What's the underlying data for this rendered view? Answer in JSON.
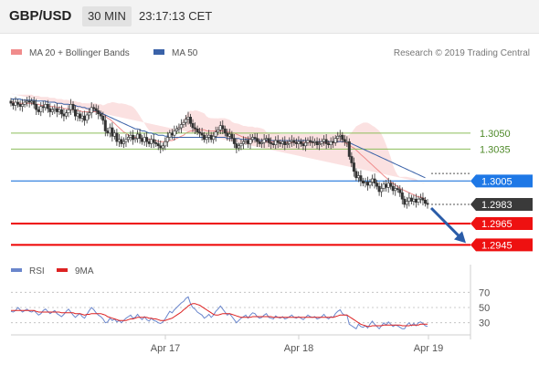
{
  "header": {
    "symbol": "GBP/USD",
    "timeframe": "30 MIN",
    "time": "23:17:13 CET"
  },
  "legend": {
    "items": [
      {
        "label": "MA 20 + Bollinger Bands",
        "color": "#f08c8c"
      },
      {
        "label": "MA 50",
        "color": "#3a62a8"
      }
    ],
    "credit": "Research © 2019 Trading Central"
  },
  "levels": [
    {
      "price": 1.305,
      "label": "1.3050",
      "style": "resistance-minor",
      "color": "#8cbd5a"
    },
    {
      "price": 1.3035,
      "label": "1.3035",
      "style": "resistance-minor",
      "color": "#8cbd5a"
    },
    {
      "price": 1.3005,
      "label": "1.3005",
      "style": "pivot",
      "color": "#2277dd"
    },
    {
      "price": 1.2983,
      "label": "1.2983",
      "style": "last",
      "color": "#333333"
    },
    {
      "price": 1.2965,
      "label": "1.2965",
      "style": "support",
      "color": "#ee0000"
    },
    {
      "price": 1.2945,
      "label": "1.2945",
      "style": "support",
      "color": "#ee0000"
    }
  ],
  "rsi_legend": {
    "items": [
      {
        "label": "RSI",
        "color": "#6a86cc"
      },
      {
        "label": "9MA",
        "color": "#dd2222"
      }
    ]
  },
  "rsi_ticks": [
    "70",
    "50",
    "30"
  ],
  "chart_data": {
    "type": "candlestick",
    "x_labels": [
      "Apr 17",
      "Apr 18",
      "Apr 19"
    ],
    "price_axis": {
      "min": 1.2935,
      "max": 1.3115
    },
    "close": [
      1.3078,
      1.3076,
      1.3079,
      1.3077,
      1.3075,
      1.3077,
      1.3079,
      1.308,
      1.3079,
      1.308,
      1.3077,
      1.3072,
      1.307,
      1.3075,
      1.3074,
      1.3077,
      1.3073,
      1.307,
      1.3072,
      1.3073,
      1.307,
      1.3072,
      1.3068,
      1.3066,
      1.3069,
      1.3072,
      1.3077,
      1.3072,
      1.3066,
      1.3068,
      1.3064,
      1.3066,
      1.3062,
      1.3067,
      1.3069,
      1.3074,
      1.3073,
      1.3071,
      1.3068,
      1.3066,
      1.3062,
      1.3052,
      1.305,
      1.3055,
      1.3047,
      1.305,
      1.3042,
      1.3044,
      1.304,
      1.3042,
      1.3044,
      1.3046,
      1.3048,
      1.3044,
      1.3045,
      1.3049,
      1.3045,
      1.3042,
      1.3046,
      1.3042,
      1.304,
      1.3044,
      1.3041,
      1.304,
      1.3038,
      1.3036,
      1.3038,
      1.3042,
      1.3046,
      1.305,
      1.3048,
      1.3052,
      1.3054,
      1.3055,
      1.3058,
      1.306,
      1.3063,
      1.3065,
      1.3059,
      1.3055,
      1.3054,
      1.3051,
      1.305,
      1.3048,
      1.3044,
      1.3046,
      1.3048,
      1.3044,
      1.3047,
      1.3051,
      1.3053,
      1.3057,
      1.3054,
      1.305,
      1.3047,
      1.3049,
      1.3045,
      1.304,
      1.3036,
      1.3038,
      1.304,
      1.3042,
      1.3043,
      1.304,
      1.3044,
      1.3046,
      1.3045,
      1.3042,
      1.304,
      1.3041,
      1.3044,
      1.3045,
      1.3041,
      1.304,
      1.3039,
      1.3043,
      1.3041,
      1.304,
      1.3042,
      1.3039,
      1.304,
      1.3042,
      1.3043,
      1.3041,
      1.304,
      1.3042,
      1.304,
      1.3038,
      1.3041,
      1.3043,
      1.3042,
      1.3041,
      1.3042,
      1.3039,
      1.304,
      1.3042,
      1.3044,
      1.304,
      1.3039,
      1.3042,
      1.3041,
      1.3045,
      1.3047,
      1.3048,
      1.3044,
      1.3042,
      1.3042,
      1.3028,
      1.3022,
      1.3014,
      1.3008,
      1.301,
      1.3005,
      1.3003,
      1.3004,
      1.3001,
      1.3004,
      1.3007,
      1.3003,
      1.3,
      1.2995,
      1.2998,
      1.3002,
      1.2999,
      1.3003,
      1.3,
      1.2996,
      1.2998,
      1.2997,
      1.2994,
      1.2988,
      1.2983,
      1.2986,
      1.2989,
      1.2986,
      1.2988,
      1.2985,
      1.2988,
      1.2989,
      1.2987,
      1.2984,
      1.2983
    ],
    "ma20": [
      1.3079,
      1.3079,
      1.3078,
      1.3078,
      1.3078,
      1.3078,
      1.3078,
      1.3078,
      1.3078,
      1.3078,
      1.3077,
      1.3077,
      1.3077,
      1.3076,
      1.3076,
      1.3076,
      1.3076,
      1.3075,
      1.3075,
      1.3075,
      1.3074,
      1.3074,
      1.3074,
      1.3073,
      1.3073,
      1.3073,
      1.3072,
      1.3072,
      1.3072,
      1.3071,
      1.3071,
      1.307,
      1.307,
      1.307,
      1.307,
      1.307,
      1.307,
      1.307,
      1.3069,
      1.3069,
      1.3068,
      1.3066,
      1.3064,
      1.3063,
      1.3061,
      1.3059,
      1.3057,
      1.3055,
      1.3053,
      1.3051,
      1.305,
      1.3048,
      1.3047,
      1.3046,
      1.3046,
      1.3046,
      1.3045,
      1.3045,
      1.3044,
      1.3044,
      1.3044,
      1.3044,
      1.3043,
      1.3043,
      1.3042,
      1.3042,
      1.3042,
      1.3042,
      1.3042,
      1.3043,
      1.3043,
      1.3044,
      1.3045,
      1.3046,
      1.3047,
      1.3048,
      1.305,
      1.3051,
      1.3052,
      1.3052,
      1.3053,
      1.3053,
      1.3053,
      1.3053,
      1.3053,
      1.3052,
      1.3052,
      1.3052,
      1.3052,
      1.3052,
      1.3052,
      1.3052,
      1.3052,
      1.3052,
      1.3051,
      1.3051,
      1.305,
      1.305,
      1.3049,
      1.3048,
      1.3047,
      1.3046,
      1.3046,
      1.3045,
      1.3045,
      1.3045,
      1.3044,
      1.3044,
      1.3043,
      1.3043,
      1.3043,
      1.3042,
      1.3042,
      1.3042,
      1.3042,
      1.3042,
      1.3042,
      1.3041,
      1.3041,
      1.3041,
      1.3041,
      1.3041,
      1.3041,
      1.3041,
      1.3041,
      1.3041,
      1.3041,
      1.3041,
      1.3041,
      1.3041,
      1.3041,
      1.3041,
      1.3041,
      1.3041,
      1.3041,
      1.3041,
      1.3041,
      1.3041,
      1.3041,
      1.3041,
      1.3041,
      1.3041,
      1.3042,
      1.3042,
      1.3042,
      1.3041,
      1.304,
      1.3039,
      1.3037,
      1.3036,
      1.3034,
      1.3032,
      1.303,
      1.3028,
      1.3026,
      1.3024,
      1.3022,
      1.302,
      1.3018,
      1.3016,
      1.3014,
      1.3012,
      1.301,
      1.3008,
      1.3006,
      1.3004,
      1.3003,
      1.3001,
      1.3,
      1.2998,
      1.2997,
      1.2996,
      1.2995,
      1.2994,
      1.2993,
      1.2992,
      1.2991,
      1.299,
      1.299,
      1.2989,
      1.2988
    ],
    "ma50": [
      1.3082,
      1.3082,
      1.3082,
      1.3082,
      1.3082,
      1.3081,
      1.3081,
      1.3081,
      1.3081,
      1.3081,
      1.3081,
      1.308,
      1.308,
      1.308,
      1.308,
      1.308,
      1.3079,
      1.3079,
      1.3079,
      1.3079,
      1.3078,
      1.3078,
      1.3078,
      1.3077,
      1.3077,
      1.3077,
      1.3076,
      1.3076,
      1.3076,
      1.3075,
      1.3075,
      1.3074,
      1.3074,
      1.3073,
      1.3073,
      1.3072,
      1.3071,
      1.3071,
      1.307,
      1.3069,
      1.3068,
      1.3067,
      1.3066,
      1.3065,
      1.3064,
      1.3063,
      1.3062,
      1.3061,
      1.306,
      1.3059,
      1.3058,
      1.3057,
      1.3056,
      1.3055,
      1.3054,
      1.3054,
      1.3053,
      1.3052,
      1.3052,
      1.3051,
      1.305,
      1.305,
      1.3049,
      1.3049,
      1.3048,
      1.3048,
      1.3048,
      1.3047,
      1.3047,
      1.3047,
      1.3046,
      1.3046,
      1.3046,
      1.3046,
      1.3046,
      1.3046,
      1.3046,
      1.3046,
      1.3046,
      1.3046,
      1.3046,
      1.3046,
      1.3046,
      1.3046,
      1.3046,
      1.3046,
      1.3046,
      1.3046,
      1.3046,
      1.3046,
      1.3046,
      1.3046,
      1.3046,
      1.3046,
      1.3045,
      1.3045,
      1.3045,
      1.3045,
      1.3045,
      1.3045,
      1.3044,
      1.3044,
      1.3044,
      1.3044,
      1.3044,
      1.3044,
      1.3044,
      1.3043,
      1.3043,
      1.3043,
      1.3043,
      1.3043,
      1.3043,
      1.3043,
      1.3043,
      1.3043,
      1.3043,
      1.3043,
      1.3043,
      1.3043,
      1.3043,
      1.3043,
      1.3043,
      1.3043,
      1.3043,
      1.3043,
      1.3043,
      1.3043,
      1.3043,
      1.3043,
      1.3042,
      1.3042,
      1.3042,
      1.3042,
      1.3042,
      1.3042,
      1.3042,
      1.3042,
      1.3042,
      1.3042,
      1.3042,
      1.3042,
      1.3042,
      1.3042,
      1.3042,
      1.3042,
      1.3042,
      1.3041,
      1.304,
      1.3039,
      1.3038,
      1.3037,
      1.3036,
      1.3035,
      1.3034,
      1.3033,
      1.3032,
      1.3031,
      1.303,
      1.3029,
      1.3028,
      1.3027,
      1.3026,
      1.3025,
      1.3024,
      1.3023,
      1.3022,
      1.3021,
      1.302,
      1.3019,
      1.3018,
      1.3017,
      1.3016,
      1.3015,
      1.3014,
      1.3013,
      1.3012,
      1.3011,
      1.301,
      1.3009,
      1.3008
    ],
    "rsi": {
      "range": [
        0,
        100
      ],
      "levels": [
        70,
        50,
        30
      ],
      "rsi": [
        45,
        44,
        46,
        50,
        47,
        44,
        46,
        48,
        45,
        44,
        46,
        43,
        40,
        42,
        46,
        48,
        45,
        42,
        44,
        46,
        42,
        40,
        38,
        41,
        45,
        48,
        44,
        40,
        37,
        40,
        42,
        38,
        36,
        41,
        46,
        50,
        47,
        43,
        40,
        38,
        35,
        30,
        31,
        36,
        33,
        35,
        31,
        33,
        30,
        33,
        36,
        38,
        40,
        36,
        37,
        41,
        37,
        34,
        38,
        34,
        32,
        36,
        33,
        32,
        30,
        29,
        31,
        35,
        40,
        45,
        43,
        47,
        50,
        53,
        56,
        58,
        62,
        64,
        55,
        50,
        48,
        44,
        42,
        40,
        36,
        38,
        41,
        37,
        40,
        45,
        48,
        52,
        48,
        44,
        40,
        42,
        38,
        34,
        30,
        33,
        36,
        38,
        40,
        36,
        40,
        43,
        42,
        38,
        36,
        37,
        40,
        42,
        37,
        36,
        35,
        39,
        37,
        36,
        38,
        35,
        36,
        38,
        40,
        37,
        36,
        38,
        36,
        34,
        37,
        40,
        38,
        37,
        38,
        35,
        36,
        38,
        41,
        37,
        35,
        38,
        37,
        42,
        45,
        47,
        42,
        40,
        40,
        28,
        26,
        24,
        22,
        28,
        25,
        24,
        26,
        23,
        28,
        32,
        28,
        25,
        22,
        26,
        30,
        27,
        31,
        28,
        25,
        27,
        26,
        24,
        22,
        22,
        27,
        30,
        26,
        29,
        26,
        30,
        31,
        29,
        26,
        25
      ],
      "ma9": [
        46,
        46,
        46,
        46,
        46,
        46,
        46,
        46,
        46,
        46,
        46,
        45,
        44,
        44,
        44,
        44,
        44,
        44,
        44,
        44,
        44,
        44,
        43,
        43,
        43,
        43,
        43,
        43,
        42,
        42,
        42,
        41,
        40,
        41,
        41,
        42,
        42,
        42,
        42,
        42,
        41,
        40,
        38,
        37,
        36,
        35,
        34,
        33,
        33,
        33,
        33,
        34,
        35,
        35,
        36,
        37,
        37,
        37,
        37,
        37,
        36,
        36,
        35,
        35,
        34,
        33,
        33,
        33,
        34,
        35,
        36,
        38,
        40,
        42,
        44,
        47,
        49,
        52,
        54,
        55,
        55,
        54,
        53,
        51,
        49,
        47,
        45,
        43,
        41,
        40,
        40,
        41,
        42,
        42,
        42,
        42,
        41,
        40,
        39,
        38,
        37,
        37,
        37,
        37,
        37,
        38,
        38,
        38,
        38,
        38,
        38,
        38,
        38,
        38,
        37,
        37,
        37,
        37,
        37,
        37,
        37,
        37,
        37,
        37,
        37,
        37,
        37,
        37,
        37,
        37,
        37,
        37,
        37,
        37,
        37,
        37,
        37,
        37,
        37,
        37,
        37,
        38,
        39,
        40,
        40,
        40,
        40,
        38,
        36,
        34,
        32,
        30,
        28,
        27,
        26,
        25,
        25,
        26,
        26,
        26,
        26,
        26,
        27,
        27,
        27,
        27,
        27,
        27,
        27,
        27,
        26,
        26,
        26,
        26,
        27,
        27,
        27,
        27,
        28,
        28,
        28,
        28
      ]
    }
  }
}
